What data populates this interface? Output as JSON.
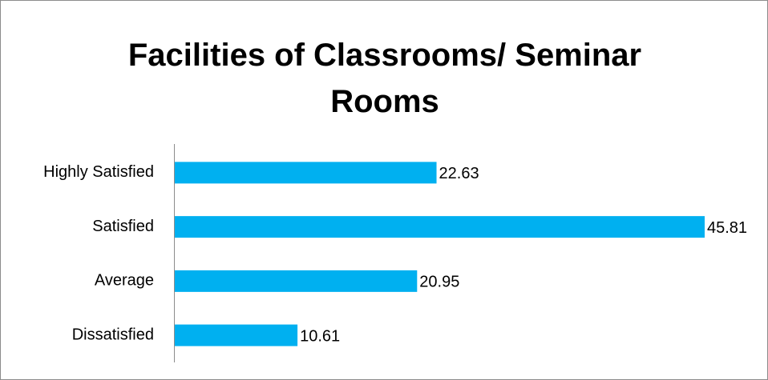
{
  "chart_data": {
    "type": "bar",
    "orientation": "horizontal",
    "title": "Facilities of Classrooms/ Seminar Rooms",
    "categories": [
      "Highly Satisfied",
      "Satisfied",
      "Average",
      "Dissatisfied"
    ],
    "values": [
      22.63,
      45.81,
      20.95,
      10.61
    ],
    "color": "#00b0f0"
  }
}
